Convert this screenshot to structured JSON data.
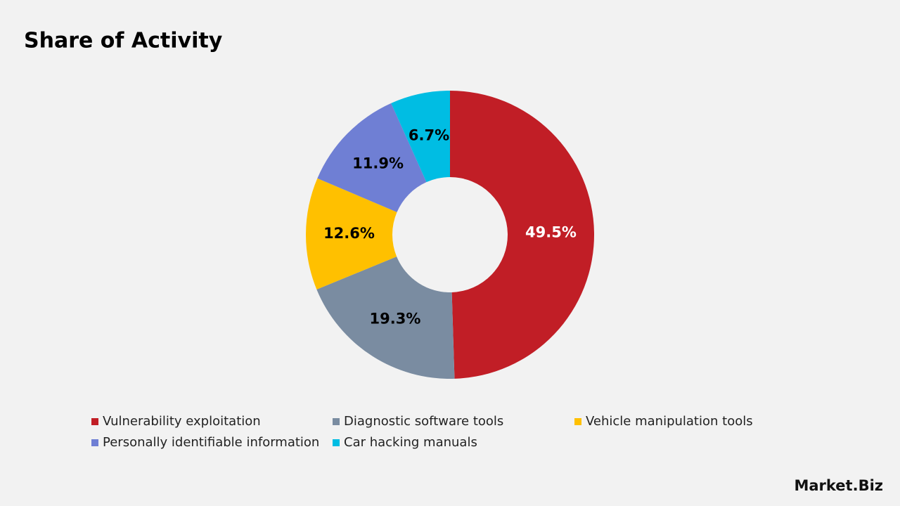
{
  "chart_data": {
    "type": "donut",
    "title": "Share of Activity",
    "categories": [
      "Vulnerability exploitation",
      "Diagnostic software tools",
      "Vehicle manipulation tools",
      "Personally identifiable information",
      "Car hacking manuals"
    ],
    "values": [
      49.5,
      19.3,
      12.6,
      11.9,
      6.7
    ],
    "value_labels": [
      "49.5%",
      "19.3%",
      "12.6%",
      "11.9%",
      "6.7%"
    ],
    "colors": [
      "#c11e26",
      "#7a8ca1",
      "#ffc000",
      "#6f7fd4",
      "#00bde3"
    ],
    "legend": "bottom"
  },
  "logo": "Market.Biz"
}
